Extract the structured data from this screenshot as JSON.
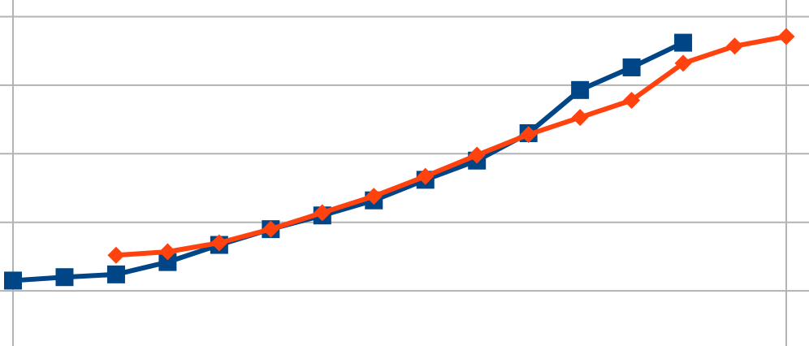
{
  "chart_data": {
    "type": "line",
    "title": "",
    "xlabel": "",
    "ylabel": "",
    "grid": true,
    "x": [
      0,
      1,
      2,
      3,
      4,
      5,
      6,
      7,
      8,
      9,
      10,
      11,
      12,
      13,
      14,
      15
    ],
    "xlim": [
      0,
      15
    ],
    "ylim": [
      0,
      5
    ],
    "series": [
      {
        "color": "#004586",
        "marker": "square",
        "values": [
          1.15,
          1.2,
          1.24,
          1.42,
          1.67,
          1.9,
          2.1,
          2.32,
          2.62,
          2.9,
          3.3,
          3.93,
          4.26,
          4.62,
          null,
          null
        ]
      },
      {
        "color": "#ff420e",
        "marker": "diamond",
        "values": [
          null,
          null,
          1.52,
          1.57,
          1.7,
          1.9,
          2.14,
          2.38,
          2.67,
          2.98,
          3.28,
          3.53,
          3.78,
          4.32,
          4.57,
          4.71
        ]
      }
    ]
  }
}
